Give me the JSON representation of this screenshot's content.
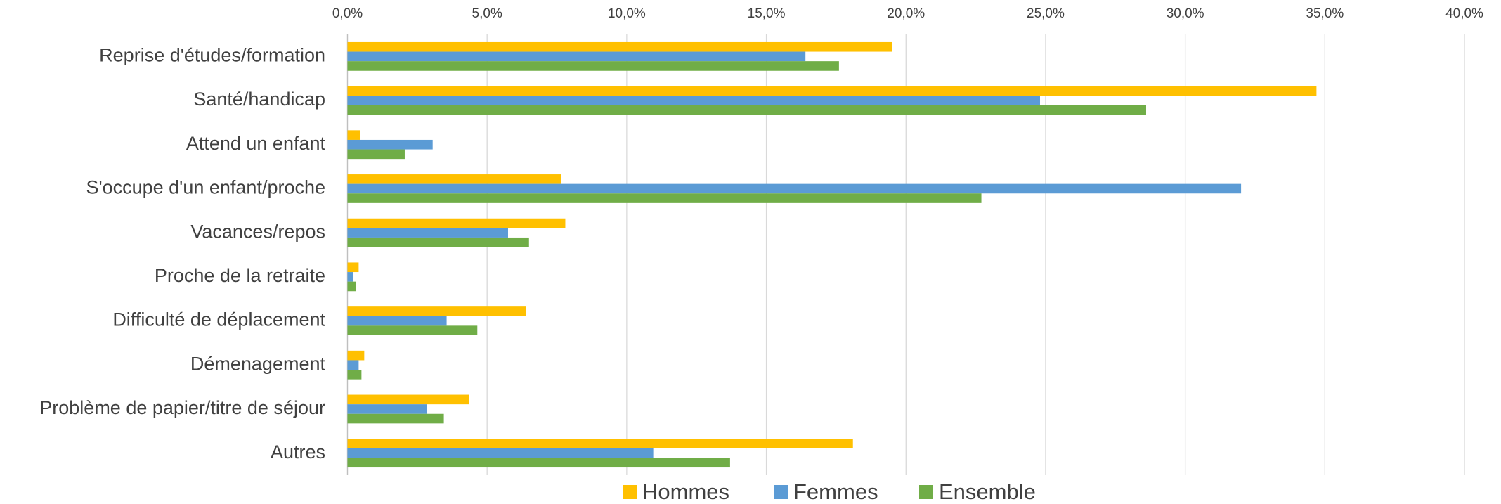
{
  "chart_data": {
    "type": "bar",
    "orientation": "horizontal",
    "categories": [
      "Reprise d'études/formation",
      "Santé/handicap",
      "Attend un enfant",
      "S'occupe d'un enfant/proche",
      "Vacances/repos",
      "Proche de la retraite",
      "Difficulté de déplacement",
      "Démenagement",
      "Problème de papier/titre de séjour",
      "Autres"
    ],
    "series": [
      {
        "name": "Hommes",
        "color": "#ffc000",
        "values": [
          19.5,
          34.7,
          0.45,
          7.65,
          7.8,
          0.4,
          6.4,
          0.6,
          4.35,
          18.1
        ]
      },
      {
        "name": "Femmes",
        "color": "#5b9bd5",
        "values": [
          16.4,
          24.8,
          3.05,
          32.0,
          5.75,
          0.2,
          3.55,
          0.4,
          2.85,
          10.95
        ]
      },
      {
        "name": "Ensemble",
        "color": "#70ad47",
        "values": [
          17.6,
          28.6,
          2.05,
          22.7,
          6.5,
          0.3,
          4.65,
          0.5,
          3.45,
          13.7
        ]
      }
    ],
    "xlim": [
      0,
      40
    ],
    "xticks": [
      {
        "value": 0,
        "label": "0,0%"
      },
      {
        "value": 5,
        "label": "5,0%"
      },
      {
        "value": 10,
        "label": "10,0%"
      },
      {
        "value": 15,
        "label": "15,0%"
      },
      {
        "value": 20,
        "label": "20,0%"
      },
      {
        "value": 25,
        "label": "25,0%"
      },
      {
        "value": 30,
        "label": "30,0%"
      },
      {
        "value": 35,
        "label": "35,0%"
      },
      {
        "value": 40,
        "label": "40,0%"
      }
    ],
    "grid": true,
    "legend": "bottom"
  }
}
